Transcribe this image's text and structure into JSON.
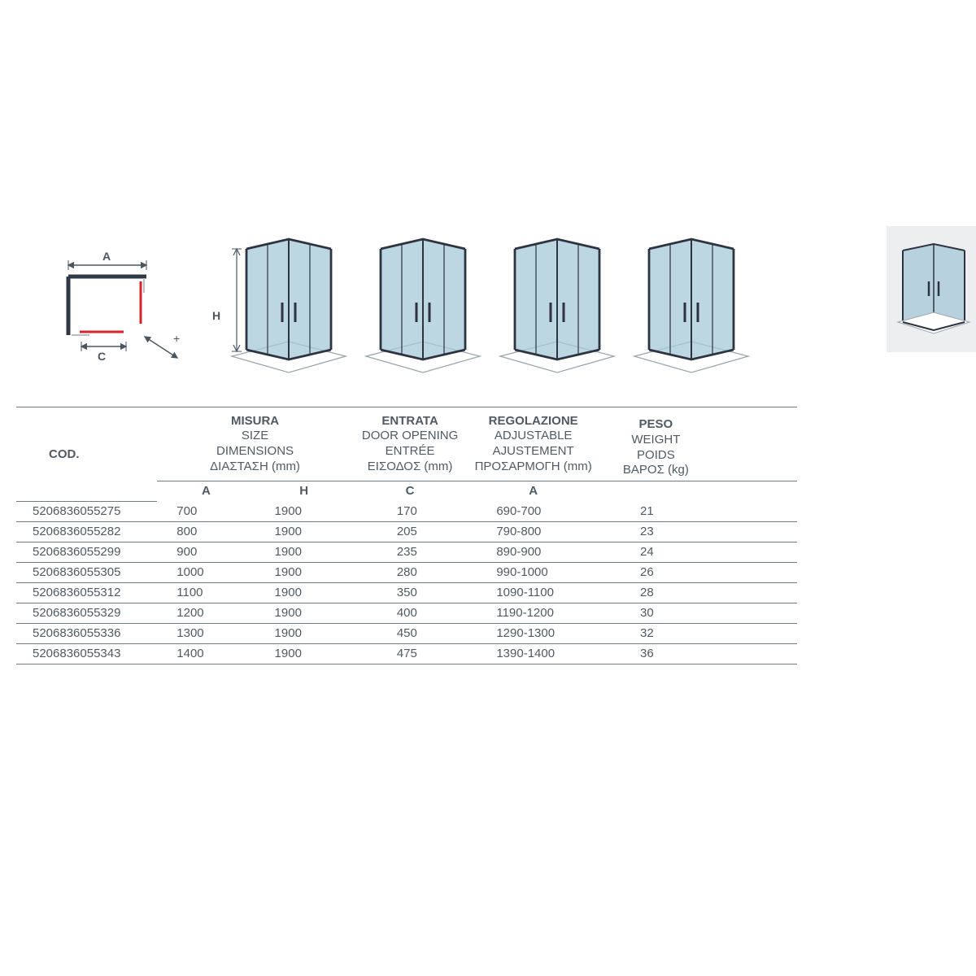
{
  "schematic": {
    "label_A": "A",
    "label_C": "C",
    "arrow_plus": "+",
    "frame_color": "#2d3a44",
    "accent_color": "#d6232a",
    "bg_color": "#ffffff"
  },
  "enclosure_style": {
    "glass_fill": "#a6c8d8",
    "glass_opacity": 0.75,
    "frame_color": "#2d3440",
    "frame_width": 2.8,
    "floor_color": "#ffffff",
    "floor_stroke": "#9aa6ae",
    "label_H": "H"
  },
  "enclosures_x": [
    275,
    440,
    605,
    770
  ],
  "thumb": {
    "bg": "#eceeef",
    "glass_fill": "#a6c8d8",
    "frame_color": "#2d3440"
  },
  "table": {
    "headers": {
      "cod": "COD.",
      "size": {
        "l1": "MISURA",
        "l2": "SIZE",
        "l3": "DIMENSIONS",
        "l4": "ΔΙΑΣΤΑΣΗ (mm)"
      },
      "entry": {
        "l1": "ENTRATA",
        "l2": "DOOR OPENING",
        "l3": "ENTRÉE",
        "l4": "ΕΙΣΟΔΟΣ (mm)"
      },
      "adjust": {
        "l1": "REGOLAZIONE",
        "l2": "ADJUSTABLE",
        "l3": "AJUSTEMENT",
        "l4": "ΠΡΟΣΑΡΜΟΓΗ (mm)"
      },
      "weight": {
        "l1": "PESO",
        "l2": "WEIGHT",
        "l3": "POIDS",
        "l4": "ΒΑΡΟΣ (kg)"
      },
      "sub_A": "A",
      "sub_H": "H",
      "sub_C": "C",
      "sub_A2": "A"
    },
    "rows": [
      {
        "cod": "5206836055275",
        "a": "700",
        "h": "1900",
        "c": "170",
        "adj": "690-700",
        "w": "21"
      },
      {
        "cod": "5206836055282",
        "a": "800",
        "h": "1900",
        "c": "205",
        "adj": "790-800",
        "w": "23"
      },
      {
        "cod": "5206836055299",
        "a": "900",
        "h": "1900",
        "c": "235",
        "adj": "890-900",
        "w": "24"
      },
      {
        "cod": "5206836055305",
        "a": "1000",
        "h": "1900",
        "c": "280",
        "adj": "990-1000",
        "w": "26"
      },
      {
        "cod": "5206836055312",
        "a": "1100",
        "h": "1900",
        "c": "350",
        "adj": "1090-1100",
        "w": "28"
      },
      {
        "cod": "5206836055329",
        "a": "1200",
        "h": "1900",
        "c": "400",
        "adj": "1190-1200",
        "w": "30"
      },
      {
        "cod": "5206836055336",
        "a": "1300",
        "h": "1900",
        "c": "450",
        "adj": "1290-1300",
        "w": "32"
      },
      {
        "cod": "5206836055343",
        "a": "1400",
        "h": "1900",
        "c": "475",
        "adj": "1390-1400",
        "w": "36"
      }
    ],
    "border_color": "#6f7a82",
    "text_color": "#505a62",
    "font_size": 15
  }
}
